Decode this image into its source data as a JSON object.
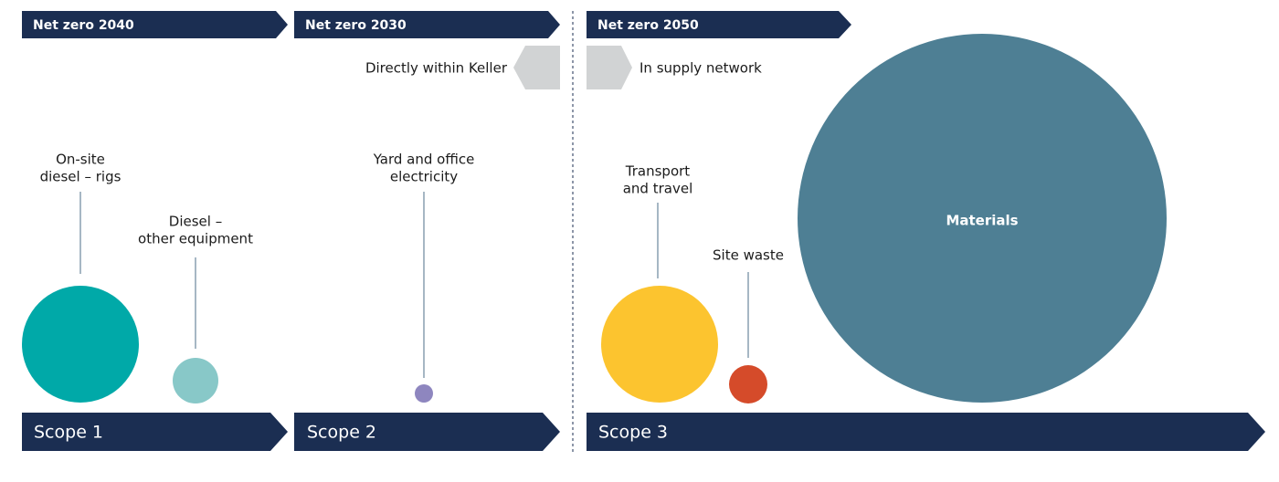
{
  "targets": [
    {
      "label": "Net zero 2040"
    },
    {
      "label": "Net zero 2030"
    },
    {
      "label": "Net zero 2050"
    }
  ],
  "directions": {
    "left": "Directly within Keller",
    "right": "In supply network"
  },
  "scopes": [
    {
      "label": "Scope 1"
    },
    {
      "label": "Scope 2"
    },
    {
      "label": "Scope 3"
    }
  ],
  "sources": [
    {
      "lines": [
        "On-site",
        "diesel – rigs"
      ]
    },
    {
      "lines": [
        "Diesel –",
        "other equipment"
      ]
    },
    {
      "lines": [
        "Yard and office",
        "electricity"
      ]
    },
    {
      "lines": [
        "Transport",
        "and travel"
      ]
    },
    {
      "lines": [
        "Site waste"
      ]
    },
    {
      "lines": [
        "Materials"
      ]
    }
  ]
}
